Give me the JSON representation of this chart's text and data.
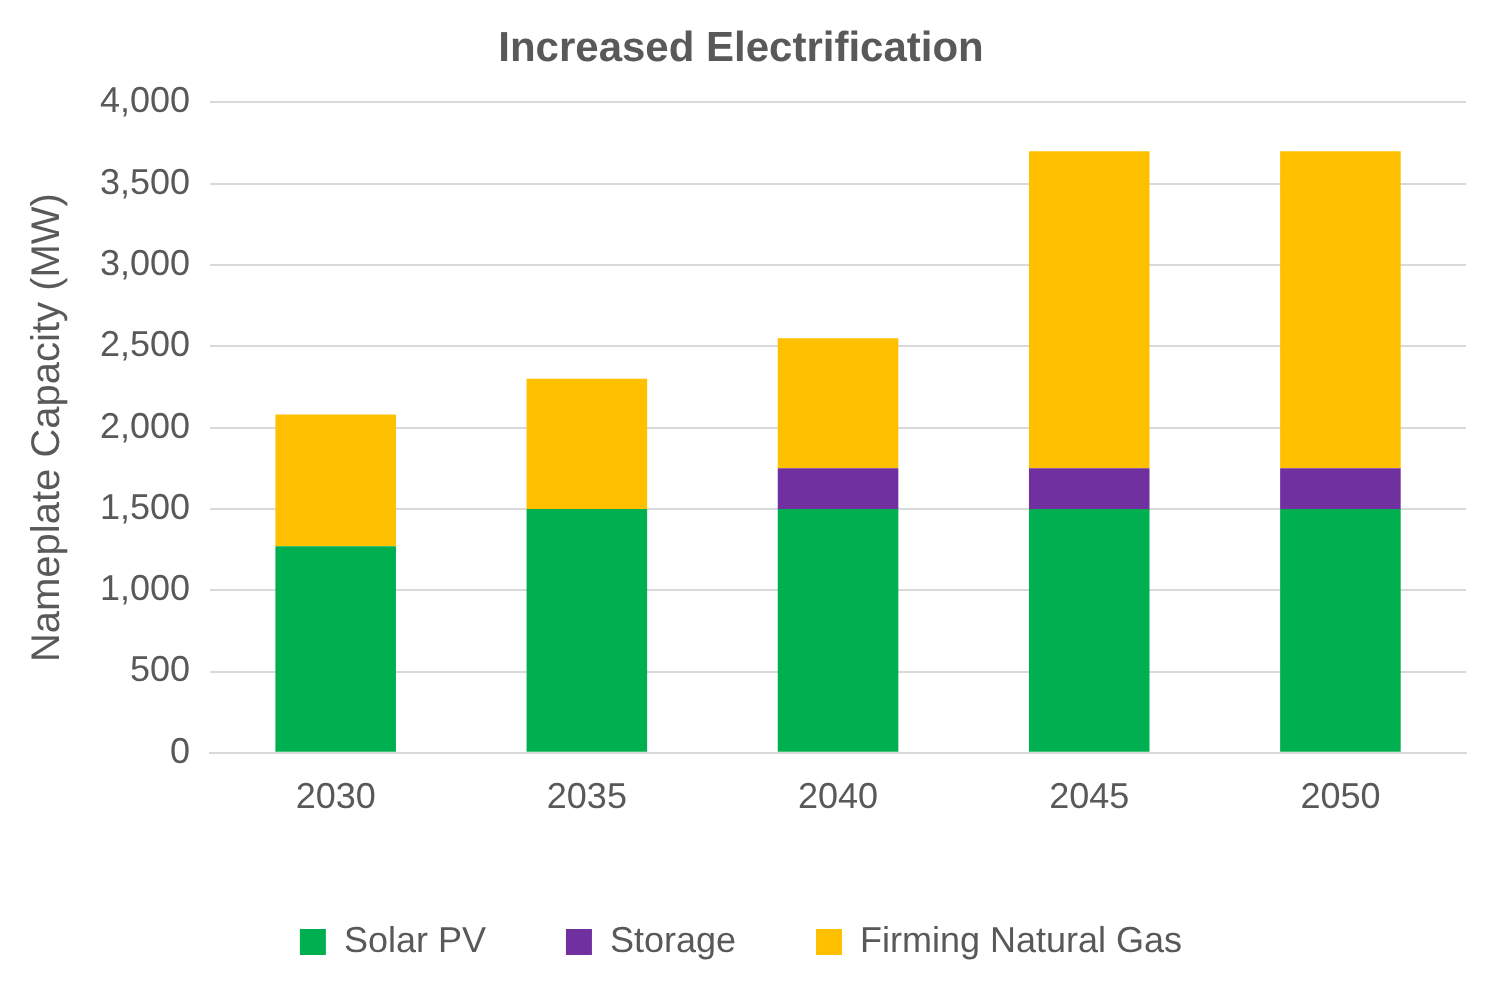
{
  "chart_data": {
    "type": "bar",
    "title": "Increased Electrification",
    "ylabel": "Nameplate Capacity (MW)",
    "categories": [
      "2030",
      "2035",
      "2040",
      "2045",
      "2050"
    ],
    "stacked": true,
    "series": [
      {
        "name": "Solar PV",
        "color": "#00b050",
        "values": [
          1270,
          1500,
          1500,
          1500,
          1500
        ]
      },
      {
        "name": "Storage",
        "color": "#7030a0",
        "values": [
          0,
          0,
          250,
          250,
          250
        ]
      },
      {
        "name": "Firming Natural Gas",
        "color": "#ffc000",
        "values": [
          810,
          800,
          800,
          1950,
          1950
        ]
      }
    ],
    "ylim": [
      0,
      4000
    ],
    "yticks": [
      {
        "value": 0,
        "label": "0"
      },
      {
        "value": 500,
        "label": "500"
      },
      {
        "value": 1000,
        "label": "1,000"
      },
      {
        "value": 1500,
        "label": "1,500"
      },
      {
        "value": 2000,
        "label": "2,000"
      },
      {
        "value": 2500,
        "label": "2,500"
      },
      {
        "value": 3000,
        "label": "3,000"
      },
      {
        "value": 3500,
        "label": "3,500"
      },
      {
        "value": 4000,
        "label": "4,000"
      }
    ],
    "grid": "y",
    "legend": "bottom"
  }
}
